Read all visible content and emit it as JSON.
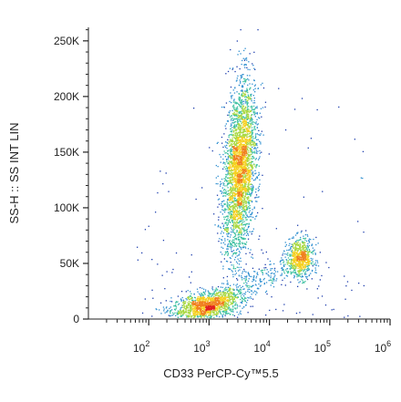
{
  "chart_data": {
    "type": "scatter",
    "title": "",
    "xlabel": "CD33 PerCP-Cy™5.5",
    "ylabel": "SS-H :: SS INT LIN",
    "x_scale": "log",
    "xlim": [
      10,
      1000000
    ],
    "ylim": [
      0,
      262144
    ],
    "grid": false,
    "x_ticks": [
      {
        "value": 100,
        "base": "10",
        "exp": "2"
      },
      {
        "value": 1000,
        "base": "10",
        "exp": "3"
      },
      {
        "value": 10000,
        "base": "10",
        "exp": "4"
      },
      {
        "value": 100000,
        "base": "10",
        "exp": "5"
      },
      {
        "value": 1000000,
        "base": "10",
        "exp": "6"
      }
    ],
    "y_ticks": [
      {
        "value": 0,
        "label": "0"
      },
      {
        "value": 50000,
        "label": "50K"
      },
      {
        "value": 100000,
        "label": "100K"
      },
      {
        "value": 150000,
        "label": "150K"
      },
      {
        "value": 200000,
        "label": "200K"
      },
      {
        "value": 250000,
        "label": "250K"
      }
    ],
    "populations": [
      {
        "x_center": 900,
        "y_center": 12000,
        "count": 1400
      },
      {
        "x_center": 3200,
        "y_center": 135000,
        "count": 3200
      },
      {
        "x_center": 32000,
        "y_center": 55000,
        "count": 700
      }
    ],
    "density_colors": [
      "#1f3fae",
      "#2f8fd0",
      "#3cc0a0",
      "#a8d840",
      "#f5d020",
      "#f08020",
      "#e02020"
    ]
  }
}
